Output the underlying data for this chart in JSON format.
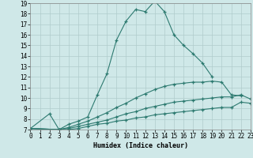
{
  "xlabel": "Humidex (Indice chaleur)",
  "xlim": [
    0,
    23
  ],
  "ylim": [
    7,
    19
  ],
  "xticks": [
    0,
    1,
    2,
    3,
    4,
    5,
    6,
    7,
    8,
    9,
    10,
    11,
    12,
    13,
    14,
    15,
    16,
    17,
    18,
    19,
    20,
    21,
    22,
    23
  ],
  "yticks": [
    7,
    8,
    9,
    10,
    11,
    12,
    13,
    14,
    15,
    16,
    17,
    18,
    19
  ],
  "bg_color": "#cfe8e8",
  "line_color": "#2d7a70",
  "grid_color": "#b0cccc",
  "curves": [
    {
      "x": [
        0,
        2,
        3,
        4,
        5,
        6,
        7,
        8,
        9,
        10,
        11,
        12,
        13,
        14,
        15,
        16,
        17,
        18,
        19
      ],
      "y": [
        7.1,
        8.5,
        7.0,
        7.5,
        7.8,
        8.2,
        10.3,
        12.3,
        15.5,
        17.3,
        18.4,
        18.2,
        19.2,
        18.2,
        16.0,
        15.0,
        14.2,
        13.3,
        12.0
      ]
    },
    {
      "x": [
        0,
        3,
        4,
        5,
        6,
        7,
        8,
        9,
        10,
        11,
        12,
        13,
        14,
        15,
        16,
        17,
        18,
        19,
        20,
        21,
        22
      ],
      "y": [
        7.1,
        7.0,
        7.2,
        7.5,
        7.8,
        8.2,
        8.6,
        9.1,
        9.5,
        10.0,
        10.4,
        10.8,
        11.1,
        11.3,
        11.4,
        11.5,
        11.5,
        11.6,
        11.5,
        10.3,
        10.2
      ]
    },
    {
      "x": [
        0,
        3,
        4,
        5,
        6,
        7,
        8,
        9,
        10,
        11,
        12,
        13,
        14,
        15,
        16,
        17,
        18,
        19,
        20,
        21,
        22,
        23
      ],
      "y": [
        7.1,
        7.0,
        7.1,
        7.3,
        7.5,
        7.7,
        7.9,
        8.2,
        8.5,
        8.7,
        9.0,
        9.2,
        9.4,
        9.6,
        9.7,
        9.8,
        9.9,
        10.0,
        10.1,
        10.1,
        10.3,
        9.9
      ]
    },
    {
      "x": [
        0,
        3,
        4,
        5,
        6,
        7,
        8,
        9,
        10,
        11,
        12,
        13,
        14,
        15,
        16,
        17,
        18,
        19,
        20,
        21,
        22,
        23
      ],
      "y": [
        7.1,
        7.0,
        7.0,
        7.1,
        7.3,
        7.5,
        7.6,
        7.8,
        7.9,
        8.1,
        8.2,
        8.4,
        8.5,
        8.6,
        8.7,
        8.8,
        8.9,
        9.0,
        9.1,
        9.1,
        9.6,
        9.5
      ]
    }
  ]
}
